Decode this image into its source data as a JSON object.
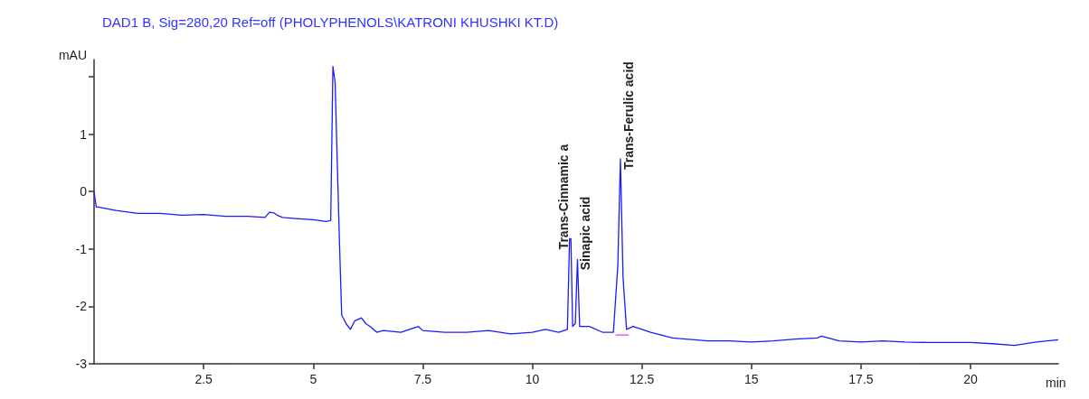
{
  "chart_data": {
    "type": "line",
    "title": "DAD1 B, Sig=280,20 Ref=off (PHOLYPHENOLS\\KATRONI KHUSHKI KT.D)",
    "ylabel": "mAU",
    "xlabel": "min",
    "xlim": [
      0,
      22
    ],
    "xticks": [
      2.5,
      5,
      7.5,
      10,
      12.5,
      15,
      17.5,
      20
    ],
    "ylim": [
      -3,
      2.3
    ],
    "yticks": [
      -3,
      -2,
      -1,
      0,
      1,
      {
        "value": 2,
        "label": null
      }
    ],
    "grid": false,
    "marker": "none",
    "line_style": "solid",
    "series": [
      {
        "color": "#1a1aff",
        "x": [
          0,
          0.05,
          0.1,
          0.5,
          1,
          1.5,
          2,
          2.5,
          3,
          3.5,
          3.9,
          4.0,
          4.1,
          4.2,
          4.3,
          4.6,
          5.0,
          5.3,
          5.4,
          5.45,
          5.5,
          5.6,
          5.65,
          5.75,
          5.85,
          5.95,
          6.1,
          6.2,
          6.3,
          6.45,
          6.6,
          7.0,
          7.4,
          7.5,
          8,
          8.5,
          9,
          9.5,
          10,
          10.3,
          10.6,
          10.8,
          10.85,
          10.88,
          10.92,
          10.98,
          11.03,
          11.08,
          11.3,
          11.6,
          11.85,
          11.95,
          12.01,
          12.07,
          12.15,
          12.3,
          12.7,
          13.2,
          14,
          14.5,
          15,
          15.5,
          16,
          16.5,
          16.6,
          17,
          17.5,
          18,
          18.5,
          19,
          19.5,
          20,
          20.5,
          21,
          21.5,
          22
        ],
        "values": [
          0,
          -0.27,
          -0.27,
          -0.33,
          -0.38,
          -0.38,
          -0.41,
          -0.4,
          -0.43,
          -0.43,
          -0.45,
          -0.36,
          -0.37,
          -0.42,
          -0.45,
          -0.47,
          -0.49,
          -0.52,
          -0.5,
          2.18,
          1.9,
          -0.9,
          -2.15,
          -2.3,
          -2.4,
          -2.25,
          -2.2,
          -2.3,
          -2.35,
          -2.45,
          -2.42,
          -2.45,
          -2.35,
          -2.42,
          -2.45,
          -2.45,
          -2.42,
          -2.48,
          -2.45,
          -2.4,
          -2.45,
          -2.4,
          -0.82,
          -0.82,
          -2.35,
          -2.3,
          -1.18,
          -2.35,
          -2.35,
          -2.45,
          -2.45,
          -1.3,
          0.57,
          -1.5,
          -2.4,
          -2.35,
          -2.45,
          -2.55,
          -2.6,
          -2.6,
          -2.62,
          -2.6,
          -2.57,
          -2.55,
          -2.52,
          -2.6,
          -2.62,
          -2.6,
          -2.62,
          -2.63,
          -2.63,
          -2.63,
          -2.65,
          -2.68,
          -2.62,
          -2.58
        ]
      },
      {
        "color": "#ff33cc",
        "x": [
          11.9,
          12.2
        ],
        "values": [
          -2.5,
          -2.5
        ]
      }
    ],
    "annotations": [
      {
        "text": "Trans-Cinnamic a",
        "x": 10.88,
        "y": -0.82
      },
      {
        "text": "Sinapic acid",
        "x": 11.03,
        "y": -1.18
      },
      {
        "text": "Trans-Ferulic acid",
        "x": 12.01,
        "y": 0.57
      }
    ]
  }
}
